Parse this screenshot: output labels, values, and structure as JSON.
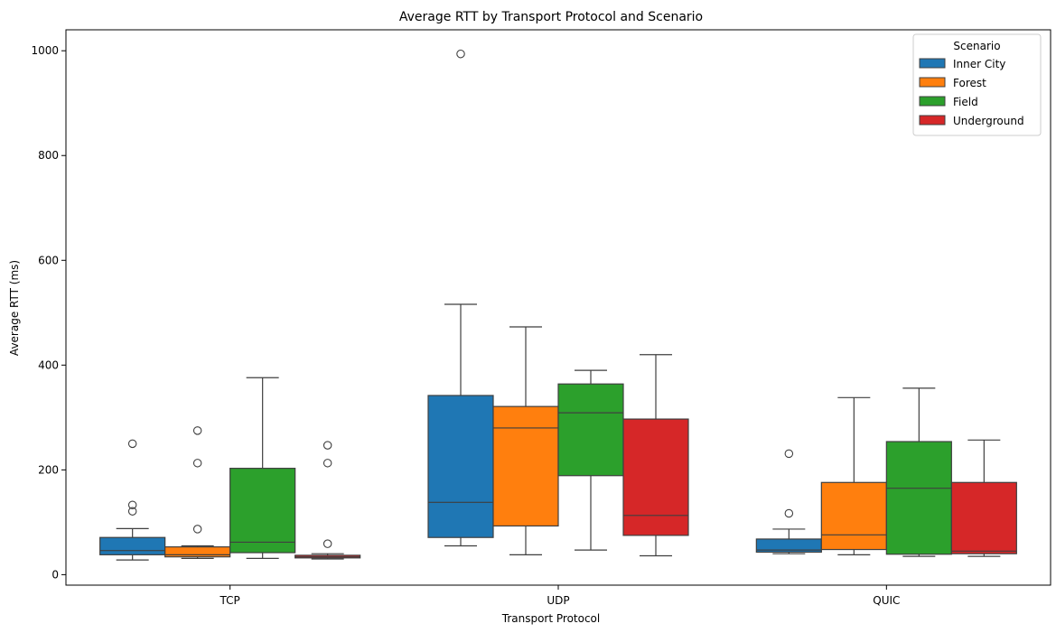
{
  "chart_data": {
    "type": "boxplot",
    "title": "Average RTT by Transport Protocol and Scenario",
    "xlabel": "Transport Protocol",
    "ylabel": "Average RTT (ms)",
    "ylim": [
      -20,
      1040
    ],
    "yticks": [
      0,
      200,
      400,
      600,
      800,
      1000
    ],
    "categories": [
      "TCP",
      "UDP",
      "QUIC"
    ],
    "legend": {
      "title": "Scenario",
      "position": "top-right"
    },
    "series": [
      {
        "name": "Inner City",
        "color": "#1f77b4",
        "boxes": [
          {
            "whisker_low": 28,
            "q1": 38,
            "median": 46,
            "q3": 71,
            "whisker_high": 88,
            "outliers": [
              121,
              133,
              250
            ]
          },
          {
            "whisker_low": 55,
            "q1": 71,
            "median": 138,
            "q3": 342,
            "whisker_high": 516,
            "outliers": [
              994
            ]
          },
          {
            "whisker_low": 40,
            "q1": 43,
            "median": 47,
            "q3": 68,
            "whisker_high": 87,
            "outliers": [
              117,
              231
            ]
          }
        ]
      },
      {
        "name": "Forest",
        "color": "#ff7f0e",
        "boxes": [
          {
            "whisker_low": 31,
            "q1": 34,
            "median": 38,
            "q3": 53,
            "whisker_high": 55,
            "outliers": [
              87,
              213,
              275
            ]
          },
          {
            "whisker_low": 38,
            "q1": 93,
            "median": 280,
            "q3": 321,
            "whisker_high": 473,
            "outliers": []
          },
          {
            "whisker_low": 38,
            "q1": 48,
            "median": 76,
            "q3": 176,
            "whisker_high": 338,
            "outliers": []
          }
        ]
      },
      {
        "name": "Field",
        "color": "#2ca02c",
        "boxes": [
          {
            "whisker_low": 31,
            "q1": 42,
            "median": 62,
            "q3": 203,
            "whisker_high": 376,
            "outliers": []
          },
          {
            "whisker_low": 47,
            "q1": 189,
            "median": 309,
            "q3": 364,
            "whisker_high": 390,
            "outliers": []
          },
          {
            "whisker_low": 35,
            "q1": 39,
            "median": 165,
            "q3": 254,
            "whisker_high": 356,
            "outliers": []
          }
        ]
      },
      {
        "name": "Underground",
        "color": "#d62728",
        "boxes": [
          {
            "whisker_low": 30,
            "q1": 32,
            "median": 34,
            "q3": 37,
            "whisker_high": 40,
            "outliers": [
              59,
              213,
              247
            ]
          },
          {
            "whisker_low": 36,
            "q1": 75,
            "median": 113,
            "q3": 297,
            "whisker_high": 420,
            "outliers": []
          },
          {
            "whisker_low": 35,
            "q1": 40,
            "median": 45,
            "q3": 176,
            "whisker_high": 257,
            "outliers": []
          }
        ]
      }
    ]
  }
}
